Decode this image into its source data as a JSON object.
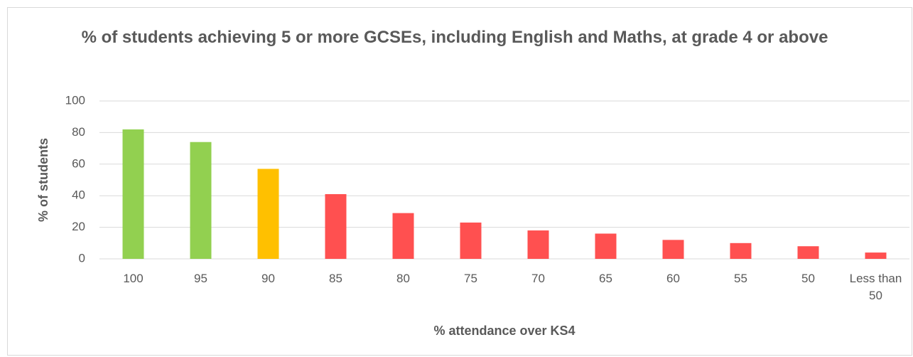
{
  "chart_data": {
    "type": "bar",
    "title": "% of students achieving 5 or more GCSEs, including English and Maths, at grade 4 or above",
    "x_label": "% attendance over KS4",
    "y_label": "% of students",
    "categories": [
      "100",
      "95",
      "90",
      "85",
      "80",
      "75",
      "70",
      "65",
      "60",
      "55",
      "50",
      "Less than 50"
    ],
    "values": [
      82,
      74,
      57,
      41,
      29,
      23,
      18,
      16,
      12,
      10,
      8,
      4
    ],
    "colors": [
      "#92d050",
      "#92d050",
      "#ffc000",
      "#ff5050",
      "#ff5050",
      "#ff5050",
      "#ff5050",
      "#ff5050",
      "#ff5050",
      "#ff5050",
      "#ff5050",
      "#ff5050"
    ],
    "ylim": [
      0,
      100
    ],
    "yticks": [
      0,
      20,
      40,
      60,
      80,
      100
    ],
    "grid": true
  }
}
